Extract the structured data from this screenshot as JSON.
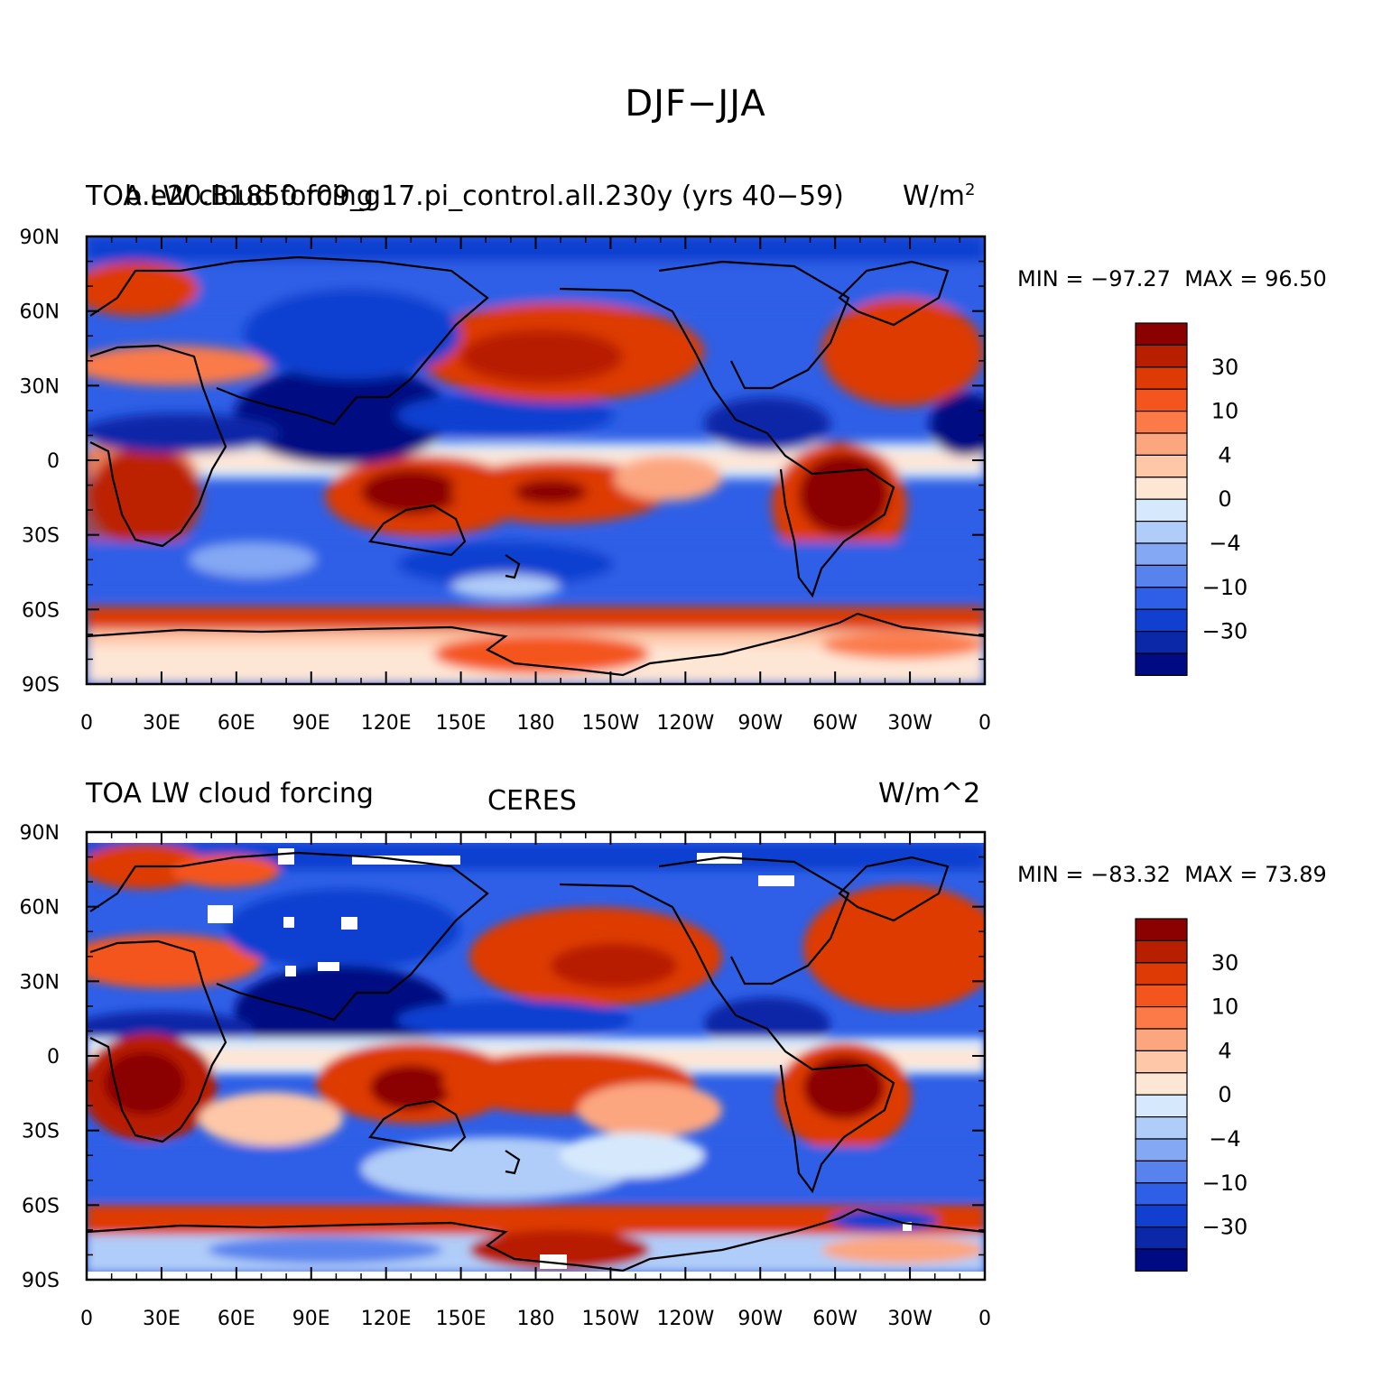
{
  "title": "DJF−JJA",
  "panels": [
    {
      "left_title": "TOA LW cloud forcing",
      "center_title": "b.e20.B1850.f09_g17.pi_control.all.230y (yrs 40−59)",
      "right_title": "W/m",
      "right_sup": "2",
      "min_text": "MIN = −97.27",
      "max_text": "MAX =   96.50"
    },
    {
      "left_title": "TOA LW cloud forcing",
      "center_title": "CERES",
      "right_title": "W/m^2",
      "right_sup": "",
      "min_text": "MIN = −83.32",
      "max_text": "MAX =   73.89"
    }
  ],
  "axes": {
    "y_ticks": [
      "90N",
      "60N",
      "30N",
      "0",
      "30S",
      "60S",
      "90S"
    ],
    "x_ticks": [
      "0",
      "30E",
      "60E",
      "90E",
      "120E",
      "150E",
      "180",
      "150W",
      "120W",
      "90W",
      "60W",
      "30W",
      "0"
    ]
  },
  "colorbar": {
    "labels": [
      "30",
      "10",
      "4",
      "0",
      "−4",
      "−10",
      "−30"
    ],
    "colors": [
      "#8b0000",
      "#b81f00",
      "#dd3a05",
      "#f4541d",
      "#fb7a48",
      "#fca680",
      "#fdc7a8",
      "#fee6d5",
      "#d6e9fc",
      "#b0ccf8",
      "#84a8f3",
      "#5883ee",
      "#2e5fe6",
      "#1140d0",
      "#0a28a8",
      "#000a82"
    ]
  },
  "chart_data": {
    "type": "heatmap",
    "title": "DJF−JJA",
    "maps": [
      {
        "dataset": "b.e20.B1850.f09_g17.pi_control.all.230y (yrs 40−59)",
        "variable": "TOA LW cloud forcing",
        "units": "W/m^2",
        "min": -97.27,
        "max": 96.5
      },
      {
        "dataset": "CERES",
        "variable": "TOA LW cloud forcing",
        "units": "W/m^2",
        "min": -83.32,
        "max": 73.89
      }
    ],
    "x_range": [
      0,
      360
    ],
    "y_range": [
      -90,
      90
    ],
    "contour_levels": [
      -50,
      -40,
      -30,
      -20,
      -10,
      -8,
      -4,
      -2,
      0,
      2,
      4,
      8,
      10,
      20,
      30,
      40
    ]
  }
}
